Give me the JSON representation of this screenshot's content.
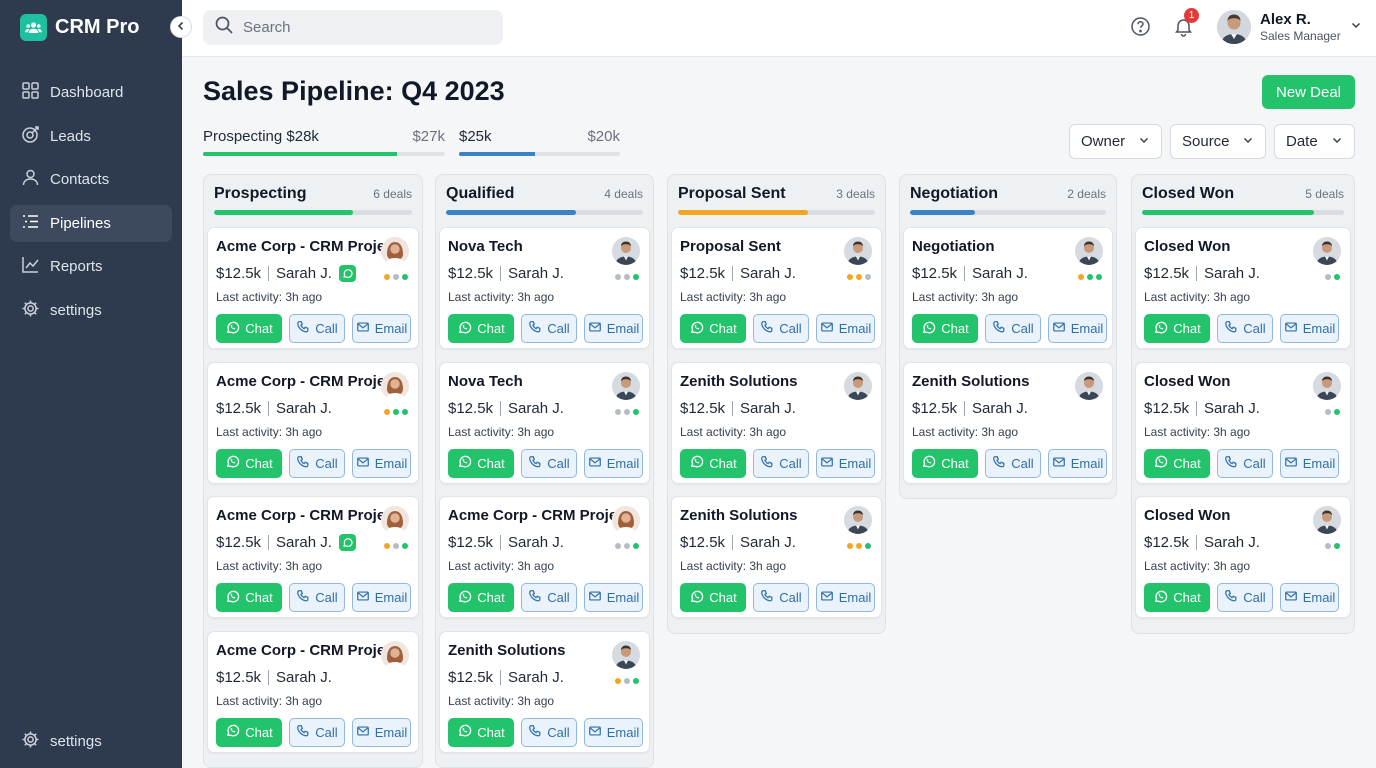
{
  "app": {
    "name": "CRM Pro"
  },
  "sidebar": {
    "items": [
      {
        "label": "Dashboard",
        "icon": "grid-icon"
      },
      {
        "label": "Leads",
        "icon": "target-icon"
      },
      {
        "label": "Contacts",
        "icon": "person-icon"
      },
      {
        "label": "Pipelines",
        "icon": "list-icon",
        "active": true
      },
      {
        "label": "Reports",
        "icon": "chart-icon"
      },
      {
        "label": "settings",
        "icon": "gear-icon"
      }
    ],
    "bottom": {
      "label": "settings",
      "icon": "gear-icon"
    }
  },
  "topbar": {
    "search_placeholder": "Search",
    "notifications": "1",
    "user": {
      "name": "Alex R.",
      "role": "Sales Manager"
    }
  },
  "page": {
    "title": "Sales Pipeline: Q4 2023",
    "new_deal_label": "New Deal",
    "summary": [
      {
        "label": "Prospecting $28k",
        "target": "$27k",
        "progress": 0.8,
        "color": "#22c36a"
      },
      {
        "label": "$25k",
        "target": "$20k",
        "progress": 0.47,
        "color": "#3b82c4"
      }
    ],
    "filters": [
      "Owner",
      "Source",
      "Date"
    ]
  },
  "colors": {
    "accent_green": "#22c36a",
    "accent_blue": "#3b82c4",
    "accent_orange": "#f5a524",
    "sidebar_bg": "#2e3a4d"
  },
  "columns": [
    {
      "title": "Prospecting",
      "count": "6 deals",
      "progress": 0.7,
      "color": "#22c36a",
      "cards": [
        {
          "title": "Acme Corp - CRM Project",
          "value": "$12.5k",
          "owner": "Sarah J.",
          "activity": "Last activity: 3h ago",
          "avatar": "female",
          "whatsapp": true,
          "dots": [
            "#f5a524",
            "#b6bcc4",
            "#22c36a"
          ]
        },
        {
          "title": "Acme Corp - CRM Project",
          "value": "$12.5k",
          "owner": "Sarah J.",
          "activity": "Last activity: 3h ago",
          "avatar": "female",
          "whatsapp": false,
          "dots": [
            "#f5a524",
            "#22c36a",
            "#22c36a"
          ]
        },
        {
          "title": "Acme Corp - CRM Project",
          "value": "$12.5k",
          "owner": "Sarah J.",
          "activity": "Last activity: 3h ago",
          "avatar": "female",
          "whatsapp": true,
          "dots": [
            "#f5a524",
            "#b6bcc4",
            "#22c36a"
          ]
        },
        {
          "title": "Acme Corp - CRM Project",
          "value": "$12.5k",
          "owner": "Sarah J.",
          "activity": "Last activity: 3h ago",
          "avatar": "female",
          "whatsapp": false,
          "dots": []
        }
      ]
    },
    {
      "title": "Qualified",
      "count": "4 deals",
      "progress": 0.66,
      "color": "#3b82c4",
      "cards": [
        {
          "title": "Nova Tech",
          "value": "$12.5k",
          "owner": "Sarah J.",
          "activity": "Last activity: 3h ago",
          "avatar": "male",
          "whatsapp": false,
          "dots": [
            "#b6bcc4",
            "#b6bcc4",
            "#22c36a"
          ]
        },
        {
          "title": "Nova Tech",
          "value": "$12.5k",
          "owner": "Sarah J.",
          "activity": "Last activity: 3h ago",
          "avatar": "male",
          "whatsapp": false,
          "dots": [
            "#b6bcc4",
            "#b6bcc4",
            "#22c36a"
          ]
        },
        {
          "title": "Acme Corp - CRM Project",
          "value": "$12.5k",
          "owner": "Sarah J.",
          "activity": "Last activity: 3h ago",
          "avatar": "female",
          "whatsapp": false,
          "dots": [
            "#b6bcc4",
            "#b6bcc4",
            "#22c36a"
          ]
        },
        {
          "title": "Zenith Solutions",
          "value": "$12.5k",
          "owner": "Sarah J.",
          "activity": "Last activity: 3h ago",
          "avatar": "male",
          "whatsapp": false,
          "dots": [
            "#f5a524",
            "#b6bcc4",
            "#22c36a"
          ]
        }
      ]
    },
    {
      "title": "Proposal Sent",
      "count": "3 deals",
      "progress": 0.66,
      "color": "#f5a524",
      "cards": [
        {
          "title": "Proposal Sent",
          "value": "$12.5k",
          "owner": "Sarah J.",
          "activity": "Last activity: 3h ago",
          "avatar": "male",
          "whatsapp": false,
          "dots": [
            "#f5a524",
            "#f5a524",
            "#b6bcc4"
          ]
        },
        {
          "title": "Zenith Solutions",
          "value": "$12.5k",
          "owner": "Sarah J.",
          "activity": "Last activity: 3h ago",
          "avatar": "male",
          "whatsapp": false,
          "dots": []
        },
        {
          "title": "Zenith Solutions",
          "value": "$12.5k",
          "owner": "Sarah J.",
          "activity": "Last activity: 3h ago",
          "avatar": "male",
          "whatsapp": false,
          "dots": [
            "#f5a524",
            "#f5a524",
            "#22c36a"
          ]
        }
      ]
    },
    {
      "title": "Negotiation",
      "count": "2 deals",
      "progress": 0.33,
      "color": "#3b82c4",
      "cards": [
        {
          "title": "Negotiation",
          "value": "$12.5k",
          "owner": "Sarah J.",
          "activity": "Last activity: 3h ago",
          "avatar": "male",
          "whatsapp": false,
          "dots": [
            "#f5a524",
            "#22c36a",
            "#22c36a"
          ]
        },
        {
          "title": "Zenith Solutions",
          "value": "$12.5k",
          "owner": "Sarah J.",
          "activity": "Last activity: 3h ago",
          "avatar": "male",
          "whatsapp": false,
          "dots": []
        }
      ]
    },
    {
      "title": "Closed Won",
      "count": "5 deals",
      "progress": 0.85,
      "color": "#22c36a",
      "cards": [
        {
          "title": "Closed Won",
          "value": "$12.5k",
          "owner": "Sarah J.",
          "activity": "Last activity: 3h ago",
          "avatar": "male",
          "whatsapp": false,
          "dots": [
            "#b6bcc4",
            "#22c36a"
          ]
        },
        {
          "title": "Closed Won",
          "value": "$12.5k",
          "owner": "Sarah J.",
          "activity": "Last activity: 3h ago",
          "avatar": "male",
          "whatsapp": false,
          "dots": [
            "#b6bcc4",
            "#22c36a"
          ]
        },
        {
          "title": "Closed Won",
          "value": "$12.5k",
          "owner": "Sarah J.",
          "activity": "Last activity: 3h ago",
          "avatar": "male",
          "whatsapp": false,
          "dots": [
            "#b6bcc4",
            "#22c36a"
          ]
        }
      ]
    }
  ],
  "actions": {
    "chat": "Chat",
    "call": "Call",
    "email": "Email"
  }
}
